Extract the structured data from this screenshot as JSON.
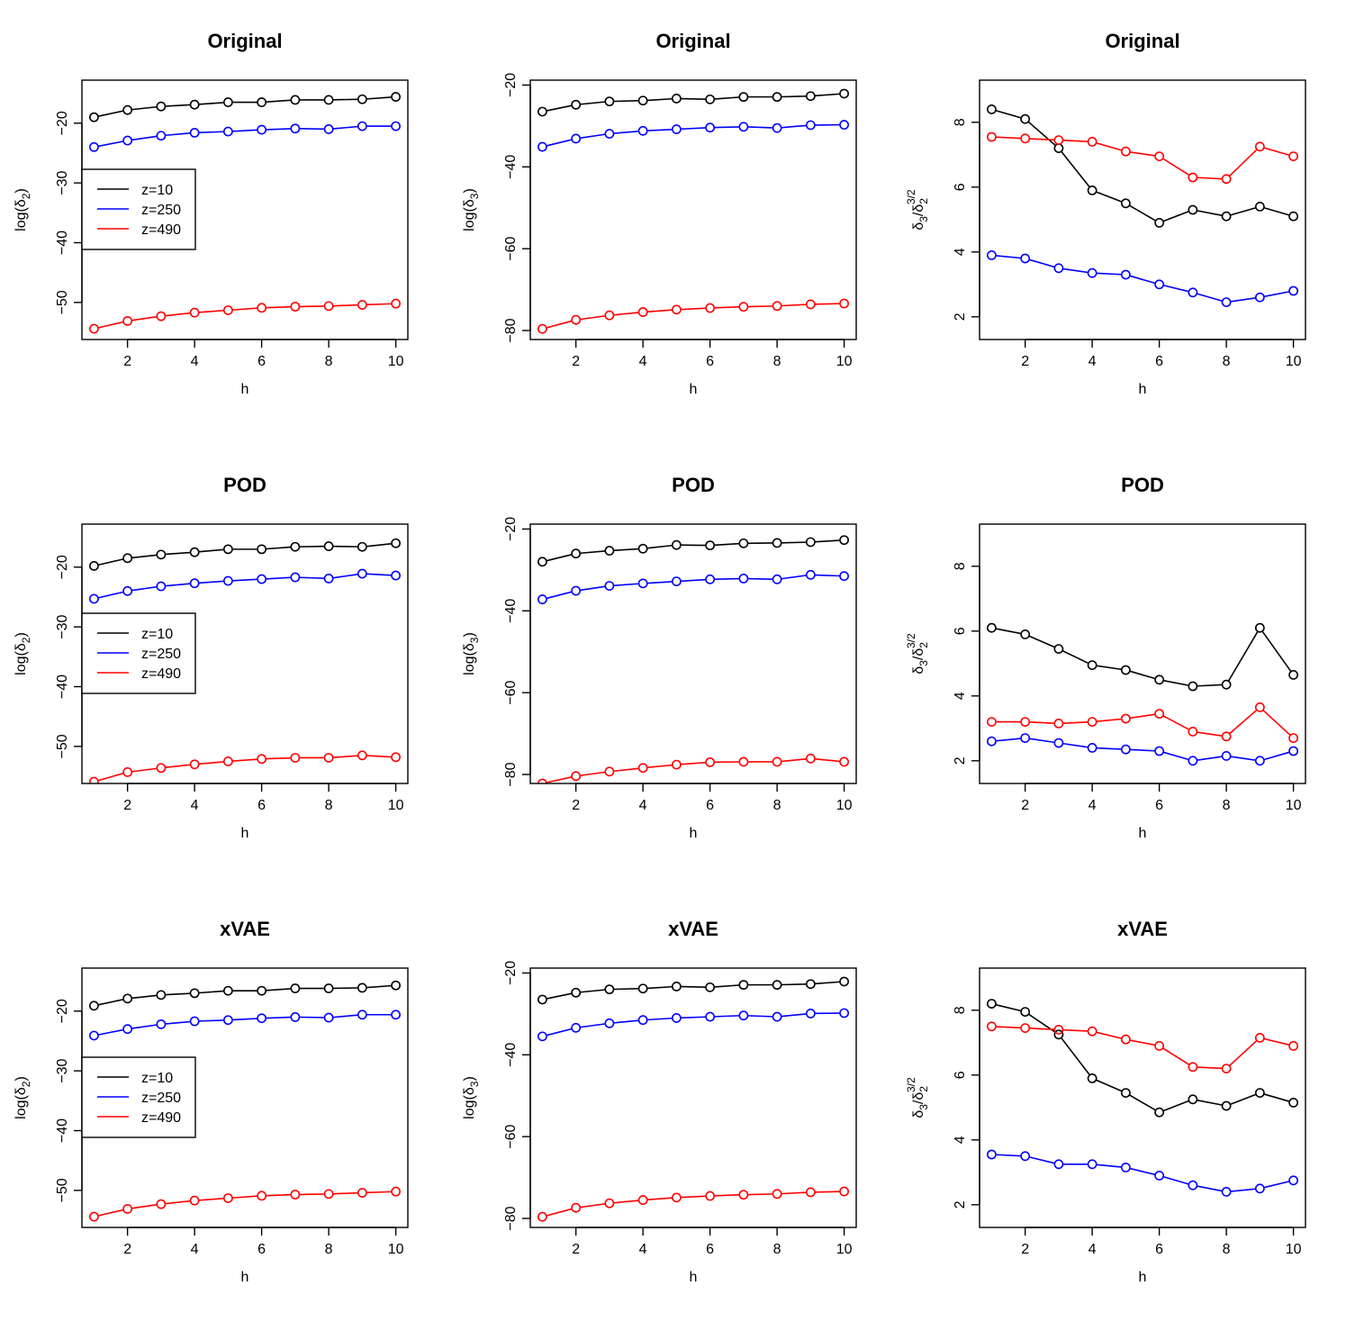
{
  "colors": {
    "z=10": "#000000",
    "z=250": "#0000ff",
    "z=490": "#ff0000"
  },
  "chart_data": [
    {
      "type": "line",
      "title": "Original",
      "xlabel": "h",
      "ylabel": "log(δ₂)",
      "ylabel_parts": [
        "log(δ",
        "2",
        ")"
      ],
      "xlim": [
        0.64,
        10.36
      ],
      "ylim": [
        -56.2,
        -12.8
      ],
      "xticks": [
        2,
        4,
        6,
        8,
        10
      ],
      "yticks": [
        -50,
        -40,
        -30,
        -20
      ],
      "x": [
        1,
        2,
        3,
        4,
        5,
        6,
        7,
        8,
        9,
        10
      ],
      "legend": "left",
      "series": [
        {
          "name": "z=10",
          "color": "#000000",
          "values": [
            -19.0,
            -17.8,
            -17.2,
            -16.9,
            -16.5,
            -16.5,
            -16.1,
            -16.1,
            -16.0,
            -15.6
          ]
        },
        {
          "name": "z=250",
          "color": "#0000ff",
          "values": [
            -24.0,
            -22.9,
            -22.1,
            -21.6,
            -21.4,
            -21.1,
            -20.9,
            -21.0,
            -20.5,
            -20.5
          ]
        },
        {
          "name": "z=490",
          "color": "#ff0000",
          "values": [
            -54.4,
            -53.1,
            -52.3,
            -51.7,
            -51.3,
            -50.9,
            -50.7,
            -50.6,
            -50.4,
            -50.2
          ]
        }
      ]
    },
    {
      "type": "line",
      "title": "Original",
      "xlabel": "h",
      "ylabel": "log(δ₃)",
      "ylabel_parts": [
        "log(δ",
        "3",
        ")"
      ],
      "xlim": [
        0.64,
        10.36
      ],
      "ylim": [
        -82.2,
        -18.8
      ],
      "xticks": [
        2,
        4,
        6,
        8,
        10
      ],
      "yticks": [
        -80,
        -60,
        -40,
        -20
      ],
      "x": [
        1,
        2,
        3,
        4,
        5,
        6,
        7,
        8,
        9,
        10
      ],
      "series": [
        {
          "name": "z=10",
          "color": "#000000",
          "values": [
            -26.5,
            -24.8,
            -24.0,
            -23.8,
            -23.3,
            -23.5,
            -22.9,
            -22.9,
            -22.7,
            -22.1
          ]
        },
        {
          "name": "z=250",
          "color": "#0000ff",
          "values": [
            -35.1,
            -33.1,
            -31.9,
            -31.2,
            -30.8,
            -30.4,
            -30.2,
            -30.5,
            -29.8,
            -29.7
          ]
        },
        {
          "name": "z=490",
          "color": "#ff0000",
          "values": [
            -79.6,
            -77.4,
            -76.3,
            -75.5,
            -74.9,
            -74.5,
            -74.2,
            -74.0,
            -73.6,
            -73.4
          ]
        }
      ]
    },
    {
      "type": "line",
      "title": "Original",
      "xlabel": "h",
      "ylabel": "δ₃/δ₂^(3/2)",
      "ylabel_frac": true,
      "xlim": [
        0.64,
        10.36
      ],
      "ylim": [
        1.3,
        9.3
      ],
      "xticks": [
        2,
        4,
        6,
        8,
        10
      ],
      "yticks": [
        2,
        4,
        6,
        8
      ],
      "x": [
        1,
        2,
        3,
        4,
        5,
        6,
        7,
        8,
        9,
        10
      ],
      "series": [
        {
          "name": "z=10",
          "color": "#000000",
          "values": [
            8.4,
            8.1,
            7.2,
            5.9,
            5.5,
            4.9,
            5.3,
            5.1,
            5.4,
            5.1
          ]
        },
        {
          "name": "z=250",
          "color": "#0000ff",
          "values": [
            3.9,
            3.8,
            3.5,
            3.35,
            3.3,
            3.0,
            2.75,
            2.45,
            2.6,
            2.8
          ]
        },
        {
          "name": "z=490",
          "color": "#ff0000",
          "values": [
            7.55,
            7.5,
            7.45,
            7.4,
            7.1,
            6.95,
            6.3,
            6.25,
            7.25,
            6.95
          ]
        }
      ]
    },
    {
      "type": "line",
      "title": "POD",
      "xlabel": "h",
      "ylabel": "log(δ₂)",
      "ylabel_parts": [
        "log(δ",
        "2",
        ")"
      ],
      "xlim": [
        0.64,
        10.36
      ],
      "ylim": [
        -56.2,
        -12.8
      ],
      "xticks": [
        2,
        4,
        6,
        8,
        10
      ],
      "yticks": [
        -50,
        -40,
        -30,
        -20
      ],
      "x": [
        1,
        2,
        3,
        4,
        5,
        6,
        7,
        8,
        9,
        10
      ],
      "legend": "left",
      "series": [
        {
          "name": "z=10",
          "color": "#000000",
          "values": [
            -19.8,
            -18.5,
            -17.9,
            -17.5,
            -17.0,
            -17.0,
            -16.6,
            -16.5,
            -16.6,
            -16.0
          ]
        },
        {
          "name": "z=250",
          "color": "#0000ff",
          "values": [
            -25.3,
            -24.0,
            -23.2,
            -22.7,
            -22.3,
            -22.0,
            -21.7,
            -21.9,
            -21.1,
            -21.4
          ]
        },
        {
          "name": "z=490",
          "color": "#ff0000",
          "values": [
            -55.9,
            -54.3,
            -53.6,
            -53.0,
            -52.5,
            -52.1,
            -51.9,
            -51.9,
            -51.5,
            -51.8
          ]
        }
      ]
    },
    {
      "type": "line",
      "title": "POD",
      "xlabel": "h",
      "ylabel": "log(δ₃)",
      "ylabel_parts": [
        "log(δ",
        "3",
        ")"
      ],
      "xlim": [
        0.64,
        10.36
      ],
      "ylim": [
        -82.2,
        -18.8
      ],
      "xticks": [
        2,
        4,
        6,
        8,
        10
      ],
      "yticks": [
        -80,
        -60,
        -40,
        -20
      ],
      "x": [
        1,
        2,
        3,
        4,
        5,
        6,
        7,
        8,
        9,
        10
      ],
      "series": [
        {
          "name": "z=10",
          "color": "#000000",
          "values": [
            -28.0,
            -26.0,
            -25.3,
            -24.8,
            -23.9,
            -24.0,
            -23.5,
            -23.4,
            -23.2,
            -22.7
          ]
        },
        {
          "name": "z=250",
          "color": "#0000ff",
          "values": [
            -37.2,
            -35.1,
            -33.9,
            -33.3,
            -32.8,
            -32.3,
            -32.1,
            -32.3,
            -31.2,
            -31.5
          ]
        },
        {
          "name": "z=490",
          "color": "#ff0000",
          "values": [
            -82.2,
            -80.4,
            -79.3,
            -78.4,
            -77.6,
            -77.0,
            -76.9,
            -76.9,
            -76.1,
            -76.9
          ]
        }
      ]
    },
    {
      "type": "line",
      "title": "POD",
      "xlabel": "h",
      "ylabel": "δ₃/δ₂^(3/2)",
      "ylabel_frac": true,
      "xlim": [
        0.64,
        10.36
      ],
      "ylim": [
        1.3,
        9.3
      ],
      "xticks": [
        2,
        4,
        6,
        8,
        10
      ],
      "yticks": [
        2,
        4,
        6,
        8
      ],
      "x": [
        1,
        2,
        3,
        4,
        5,
        6,
        7,
        8,
        9,
        10
      ],
      "series": [
        {
          "name": "z=10",
          "color": "#000000",
          "values": [
            6.1,
            5.9,
            5.45,
            4.95,
            4.8,
            4.5,
            4.3,
            4.35,
            6.1,
            4.65
          ]
        },
        {
          "name": "z=250",
          "color": "#0000ff",
          "values": [
            2.6,
            2.7,
            2.55,
            2.4,
            2.35,
            2.3,
            2.0,
            2.15,
            2.0,
            2.3
          ]
        },
        {
          "name": "z=490",
          "color": "#ff0000",
          "values": [
            3.2,
            3.2,
            3.15,
            3.2,
            3.3,
            3.45,
            2.9,
            2.75,
            3.65,
            2.7
          ]
        }
      ]
    },
    {
      "type": "line",
      "title": "xVAE",
      "xlabel": "h",
      "ylabel": "log(δ₂)",
      "ylabel_parts": [
        "log(δ",
        "2",
        ")"
      ],
      "xlim": [
        0.64,
        10.36
      ],
      "ylim": [
        -56.2,
        -12.8
      ],
      "xticks": [
        2,
        4,
        6,
        8,
        10
      ],
      "yticks": [
        -50,
        -40,
        -30,
        -20
      ],
      "x": [
        1,
        2,
        3,
        4,
        5,
        6,
        7,
        8,
        9,
        10
      ],
      "legend": "left",
      "series": [
        {
          "name": "z=10",
          "color": "#000000",
          "values": [
            -19.1,
            -17.9,
            -17.3,
            -17.0,
            -16.6,
            -16.6,
            -16.2,
            -16.2,
            -16.1,
            -15.7
          ]
        },
        {
          "name": "z=250",
          "color": "#0000ff",
          "values": [
            -24.1,
            -23.0,
            -22.2,
            -21.7,
            -21.5,
            -21.2,
            -21.0,
            -21.1,
            -20.6,
            -20.6
          ]
        },
        {
          "name": "z=490",
          "color": "#ff0000",
          "values": [
            -54.4,
            -53.1,
            -52.3,
            -51.7,
            -51.3,
            -50.9,
            -50.7,
            -50.6,
            -50.4,
            -50.2
          ]
        }
      ]
    },
    {
      "type": "line",
      "title": "xVAE",
      "xlabel": "h",
      "ylabel": "log(δ₃)",
      "ylabel_parts": [
        "log(δ",
        "3",
        ")"
      ],
      "xlim": [
        0.64,
        10.36
      ],
      "ylim": [
        -82.2,
        -18.8
      ],
      "xticks": [
        2,
        4,
        6,
        8,
        10
      ],
      "yticks": [
        -80,
        -60,
        -40,
        -20
      ],
      "x": [
        1,
        2,
        3,
        4,
        5,
        6,
        7,
        8,
        9,
        10
      ],
      "series": [
        {
          "name": "z=10",
          "color": "#000000",
          "values": [
            -26.5,
            -24.8,
            -24.0,
            -23.8,
            -23.3,
            -23.5,
            -22.9,
            -22.9,
            -22.7,
            -22.1
          ]
        },
        {
          "name": "z=250",
          "color": "#0000ff",
          "values": [
            -35.5,
            -33.4,
            -32.3,
            -31.5,
            -31.0,
            -30.7,
            -30.4,
            -30.7,
            -29.9,
            -29.8
          ]
        },
        {
          "name": "z=490",
          "color": "#ff0000",
          "values": [
            -79.6,
            -77.4,
            -76.3,
            -75.5,
            -74.9,
            -74.5,
            -74.2,
            -74.0,
            -73.6,
            -73.4
          ]
        }
      ]
    },
    {
      "type": "line",
      "title": "xVAE",
      "xlabel": "h",
      "ylabel": "δ₃/δ₂^(3/2)",
      "ylabel_frac": true,
      "xlim": [
        0.64,
        10.36
      ],
      "ylim": [
        1.3,
        9.3
      ],
      "xticks": [
        2,
        4,
        6,
        8,
        10
      ],
      "yticks": [
        2,
        4,
        6,
        8
      ],
      "x": [
        1,
        2,
        3,
        4,
        5,
        6,
        7,
        8,
        9,
        10
      ],
      "series": [
        {
          "name": "z=10",
          "color": "#000000",
          "values": [
            8.2,
            7.95,
            7.25,
            5.9,
            5.45,
            4.85,
            5.25,
            5.05,
            5.45,
            5.15
          ]
        },
        {
          "name": "z=250",
          "color": "#0000ff",
          "values": [
            3.55,
            3.5,
            3.25,
            3.25,
            3.15,
            2.9,
            2.6,
            2.4,
            2.5,
            2.75
          ]
        },
        {
          "name": "z=490",
          "color": "#ff0000",
          "values": [
            7.5,
            7.45,
            7.4,
            7.35,
            7.1,
            6.9,
            6.25,
            6.2,
            7.15,
            6.9
          ]
        }
      ]
    }
  ]
}
